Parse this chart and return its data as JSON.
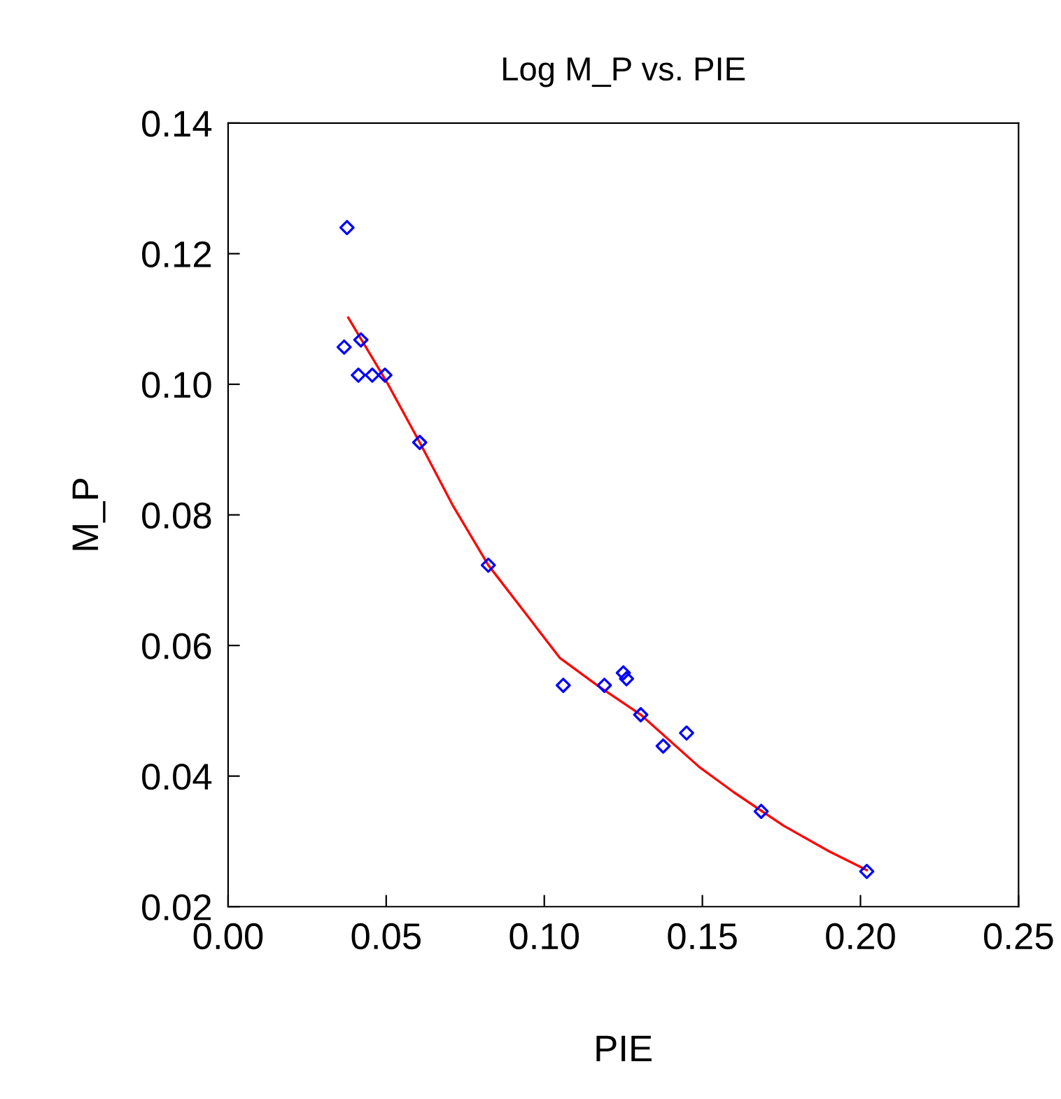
{
  "chart_data": {
    "type": "scatter",
    "title": "Log M_P vs. PIE",
    "xlabel": "PIE",
    "ylabel": "M_P",
    "xlim": [
      0.0,
      0.25
    ],
    "xticks": [
      {
        "value": 0,
        "label": "0.00"
      },
      {
        "value": 0.05,
        "label": "0.05"
      },
      {
        "value": 0.1,
        "label": "0.10"
      },
      {
        "value": 0.15,
        "label": "0.15"
      },
      {
        "value": 0.2,
        "label": "0.20"
      },
      {
        "value": 0.25,
        "label": "0.25"
      }
    ],
    "ylim": [
      0.02,
      0.14
    ],
    "yticks": [
      {
        "value": 0.02,
        "label": "0.02"
      },
      {
        "value": 0.04,
        "label": "0.04"
      },
      {
        "value": 0.06,
        "label": "0.06"
      },
      {
        "value": 0.08,
        "label": "0.08"
      },
      {
        "value": 0.1,
        "label": "0.10"
      },
      {
        "value": 0.12,
        "label": "0.12"
      },
      {
        "value": 0.14,
        "label": "0.14"
      }
    ],
    "grid": false,
    "legend": false,
    "series": [
      {
        "marker": "diamond",
        "color": "#0000ff",
        "x": [
          0.0376,
          0.0367,
          0.042,
          0.0412,
          0.0456,
          0.0496,
          0.0606,
          0.0823,
          0.106,
          0.119,
          0.125,
          0.126,
          0.1305,
          0.1376,
          0.145,
          0.1686,
          0.202
        ],
        "values": [
          0.124,
          0.1057,
          0.1068,
          0.1014,
          0.1014,
          0.1014,
          0.0911,
          0.0723,
          0.0539,
          0.0539,
          0.0558,
          0.0549,
          0.0494,
          0.0446,
          0.0466,
          0.0346,
          0.0254
        ]
      },
      {
        "type": "line",
        "marker": "none",
        "line_style": "solid",
        "color": "#ff0000",
        "x": [
          0.038,
          0.05,
          0.0606,
          0.071,
          0.0823,
          0.096,
          0.1049,
          0.117,
          0.1305,
          0.149,
          0.16,
          0.1757,
          0.19,
          0.202
        ],
        "values": [
          0.1102,
          0.1005,
          0.0911,
          0.0815,
          0.0723,
          0.0637,
          0.0581,
          0.0538,
          0.0494,
          0.0414,
          0.0375,
          0.0324,
          0.0285,
          0.0256
        ]
      }
    ]
  }
}
